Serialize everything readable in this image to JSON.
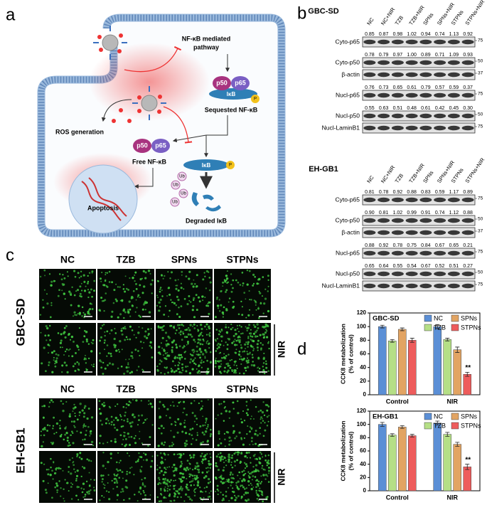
{
  "panel_a": {
    "label": "a",
    "pathway": [
      "NF-κB mediated",
      "pathway"
    ],
    "sequestered": {
      "p50": "p50",
      "p65": "p65",
      "ikb": "IκB",
      "p": "P",
      "label": "Sequested NF-κB"
    },
    "ros": "ROS generation",
    "free": {
      "p50": "p50",
      "p65": "p65",
      "label": "Free NF-κB"
    },
    "degraded": {
      "ikb": "IκB",
      "p": "P",
      "ub": [
        "Ub",
        "Ub",
        "Ub",
        "Ub"
      ],
      "label": "Degraded IκB"
    },
    "apoptosis": "Apoptosis"
  },
  "panel_b": {
    "label": "b",
    "blots": [
      {
        "cell": "GBC-SD",
        "lanes": [
          "NC",
          "NC+NIR",
          "TZB",
          "TZB+NIR",
          "SPNs",
          "SPNs+NIR",
          "STPNs",
          "STPNs+NIR"
        ],
        "rows": [
          {
            "name": "Cyto-p65",
            "values": [
              "0.85",
              "0.87",
              "0.98",
              "1.02",
              "0.94",
              "0.74",
              "1.13",
              "0.92"
            ],
            "marker": 75
          },
          {
            "name": "Cyto-p50",
            "values": [
              "0.78",
              "0.79",
              "0.97",
              "1.00",
              "0.89",
              "0.71",
              "1.09",
              "0.93"
            ],
            "marker": 50
          },
          {
            "name": "β-actin",
            "marker": 37
          },
          {
            "name": "Nucl-p65",
            "values": [
              "0.76",
              "0.73",
              "0.65",
              "0.61",
              "0.79",
              "0.57",
              "0.59",
              "0.37"
            ],
            "marker": 75
          },
          {
            "name": "Nucl-p50",
            "values": [
              "0.55",
              "0.63",
              "0.51",
              "0.48",
              "0.61",
              "0.42",
              "0.45",
              "0.30"
            ],
            "marker": 50
          },
          {
            "name": "Nucl-LaminB1",
            "marker": 75
          }
        ]
      },
      {
        "cell": "EH-GB1",
        "lanes": [
          "NC",
          "NC+NIR",
          "TZB",
          "TZB+NIR",
          "SPNs",
          "SPNs+NIR",
          "STPNs",
          "STPNs+NIR"
        ],
        "rows": [
          {
            "name": "Cyto-p65",
            "values": [
              "0.81",
              "0.78",
              "0.92",
              "0.88",
              "0.83",
              "0.59",
              "1.17",
              "0.89"
            ],
            "marker": 75
          },
          {
            "name": "Cyto-p50",
            "values": [
              "0.90",
              "0.81",
              "1.02",
              "0.99",
              "0.91",
              "0.74",
              "1.12",
              "0.88"
            ],
            "marker": 50
          },
          {
            "name": "β-actin",
            "marker": 37
          },
          {
            "name": "Nucl-p65",
            "values": [
              "0.88",
              "0.92",
              "0.78",
              "0.75",
              "0.84",
              "0.67",
              "0.65",
              "0.21"
            ],
            "marker": 75
          },
          {
            "name": "Nucl-p50",
            "values": [
              "0.65",
              "0.64",
              "0.55",
              "0.54",
              "0.67",
              "0.52",
              "0.51",
              "0.27"
            ],
            "marker": 50
          },
          {
            "name": "Nucl-LaminB1",
            "marker": 75
          }
        ]
      }
    ]
  },
  "panel_c": {
    "label": "c",
    "blocks": [
      {
        "cell": "GBC-SD",
        "columns": [
          "NC",
          "TZB",
          "SPNs",
          "STPNs"
        ],
        "condition": "NIR"
      },
      {
        "cell": "EH-GB1",
        "columns": [
          "NC",
          "TZB",
          "SPNs",
          "STPNs"
        ],
        "condition": "NIR"
      }
    ]
  },
  "panel_d": {
    "label": "d"
  },
  "chart_data": [
    {
      "type": "bar",
      "title": "GBC-SD",
      "ylabel": [
        "CCK8 metabolization",
        "(% of control)"
      ],
      "categories": [
        "Control",
        "NIR"
      ],
      "series": [
        {
          "name": "NC",
          "color": "#5b8fd6",
          "values": [
            100,
            100
          ],
          "errors": [
            2,
            3
          ]
        },
        {
          "name": "TZB",
          "color": "#b5df86",
          "values": [
            79,
            81
          ],
          "errors": [
            2,
            2
          ]
        },
        {
          "name": "SPNs",
          "color": "#e2a463",
          "values": [
            96,
            66
          ],
          "errors": [
            2,
            4
          ]
        },
        {
          "name": "STPNs",
          "color": "#ee5c5c",
          "values": [
            80,
            30
          ],
          "errors": [
            3,
            3
          ]
        }
      ],
      "ylim": [
        0,
        120
      ],
      "yticks": [
        0,
        20,
        40,
        60,
        80,
        100,
        120
      ],
      "legend": "upper right",
      "annotations": [
        "**"
      ]
    },
    {
      "type": "bar",
      "title": "EH-GB1",
      "ylabel": [
        "CCK8 metabolization",
        "(% of control)"
      ],
      "categories": [
        "Control",
        "NIR"
      ],
      "series": [
        {
          "name": "NC",
          "color": "#5b8fd6",
          "values": [
            100,
            102
          ],
          "errors": [
            3,
            3
          ]
        },
        {
          "name": "TZB",
          "color": "#b5df86",
          "values": [
            84,
            85
          ],
          "errors": [
            2,
            3
          ]
        },
        {
          "name": "SPNs",
          "color": "#e2a463",
          "values": [
            96,
            70
          ],
          "errors": [
            2,
            3
          ]
        },
        {
          "name": "STPNs",
          "color": "#ee5c5c",
          "values": [
            83,
            36
          ],
          "errors": [
            2,
            4
          ]
        }
      ],
      "ylim": [
        0,
        120
      ],
      "yticks": [
        0,
        20,
        40,
        60,
        80,
        100,
        120
      ],
      "legend": "upper right",
      "annotations": [
        "**"
      ]
    }
  ]
}
